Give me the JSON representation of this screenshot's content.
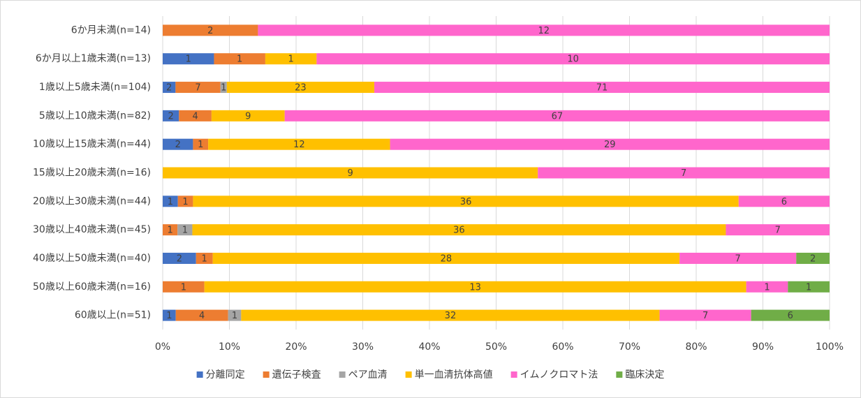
{
  "chart_data": {
    "type": "bar",
    "orientation": "horizontal",
    "stacked": "percent",
    "categories": [
      "6か月未満(n=14)",
      "6か月以上1歳未満(n=13)",
      "1歳以上5歳未満(n=104)",
      "5歳以上10歳未満(n=82)",
      "10歳以上15歳未満(n=44)",
      "15歳以上20歳未満(n=16)",
      "20歳以上30歳未満(n=44)",
      "30歳以上40歳未満(n=45)",
      "40歳以上50歳未満(n=40)",
      "50歳以上60歳未満(n=16)",
      "60歳以上(n=51)"
    ],
    "series": [
      {
        "name": "分離同定",
        "color": "#4472c4",
        "values": [
          0,
          1,
          2,
          2,
          2,
          0,
          1,
          0,
          2,
          0,
          1
        ]
      },
      {
        "name": "遺伝子検査",
        "color": "#ed7d31",
        "values": [
          2,
          1,
          7,
          4,
          1,
          0,
          1,
          1,
          1,
          1,
          4
        ]
      },
      {
        "name": "ペア血清",
        "color": "#a5a5a5",
        "values": [
          0,
          0,
          1,
          0,
          0,
          0,
          0,
          1,
          0,
          0,
          1
        ]
      },
      {
        "name": "単一血清抗体高値",
        "color": "#ffc000",
        "values": [
          0,
          1,
          23,
          9,
          12,
          9,
          36,
          36,
          28,
          13,
          32
        ]
      },
      {
        "name": "イムノクロマト法",
        "color": "#ff66cc",
        "values": [
          12,
          10,
          71,
          67,
          29,
          7,
          6,
          7,
          7,
          1,
          7
        ]
      },
      {
        "name": "臨床決定",
        "color": "#70ad47",
        "values": [
          0,
          0,
          0,
          0,
          0,
          0,
          0,
          0,
          2,
          1,
          6
        ]
      }
    ],
    "xlim": [
      0,
      100
    ],
    "xticks": [
      {
        "value": 0,
        "label": "0%"
      },
      {
        "value": 10,
        "label": "10%"
      },
      {
        "value": 20,
        "label": "20%"
      },
      {
        "value": 30,
        "label": "30%"
      },
      {
        "value": 40,
        "label": "40%"
      },
      {
        "value": 50,
        "label": "50%"
      },
      {
        "value": 60,
        "label": "60%"
      },
      {
        "value": 70,
        "label": "70%"
      },
      {
        "value": 80,
        "label": "80%"
      },
      {
        "value": 90,
        "label": "90%"
      },
      {
        "value": 100,
        "label": "100%"
      }
    ],
    "grid": true,
    "legend": "bottom"
  }
}
